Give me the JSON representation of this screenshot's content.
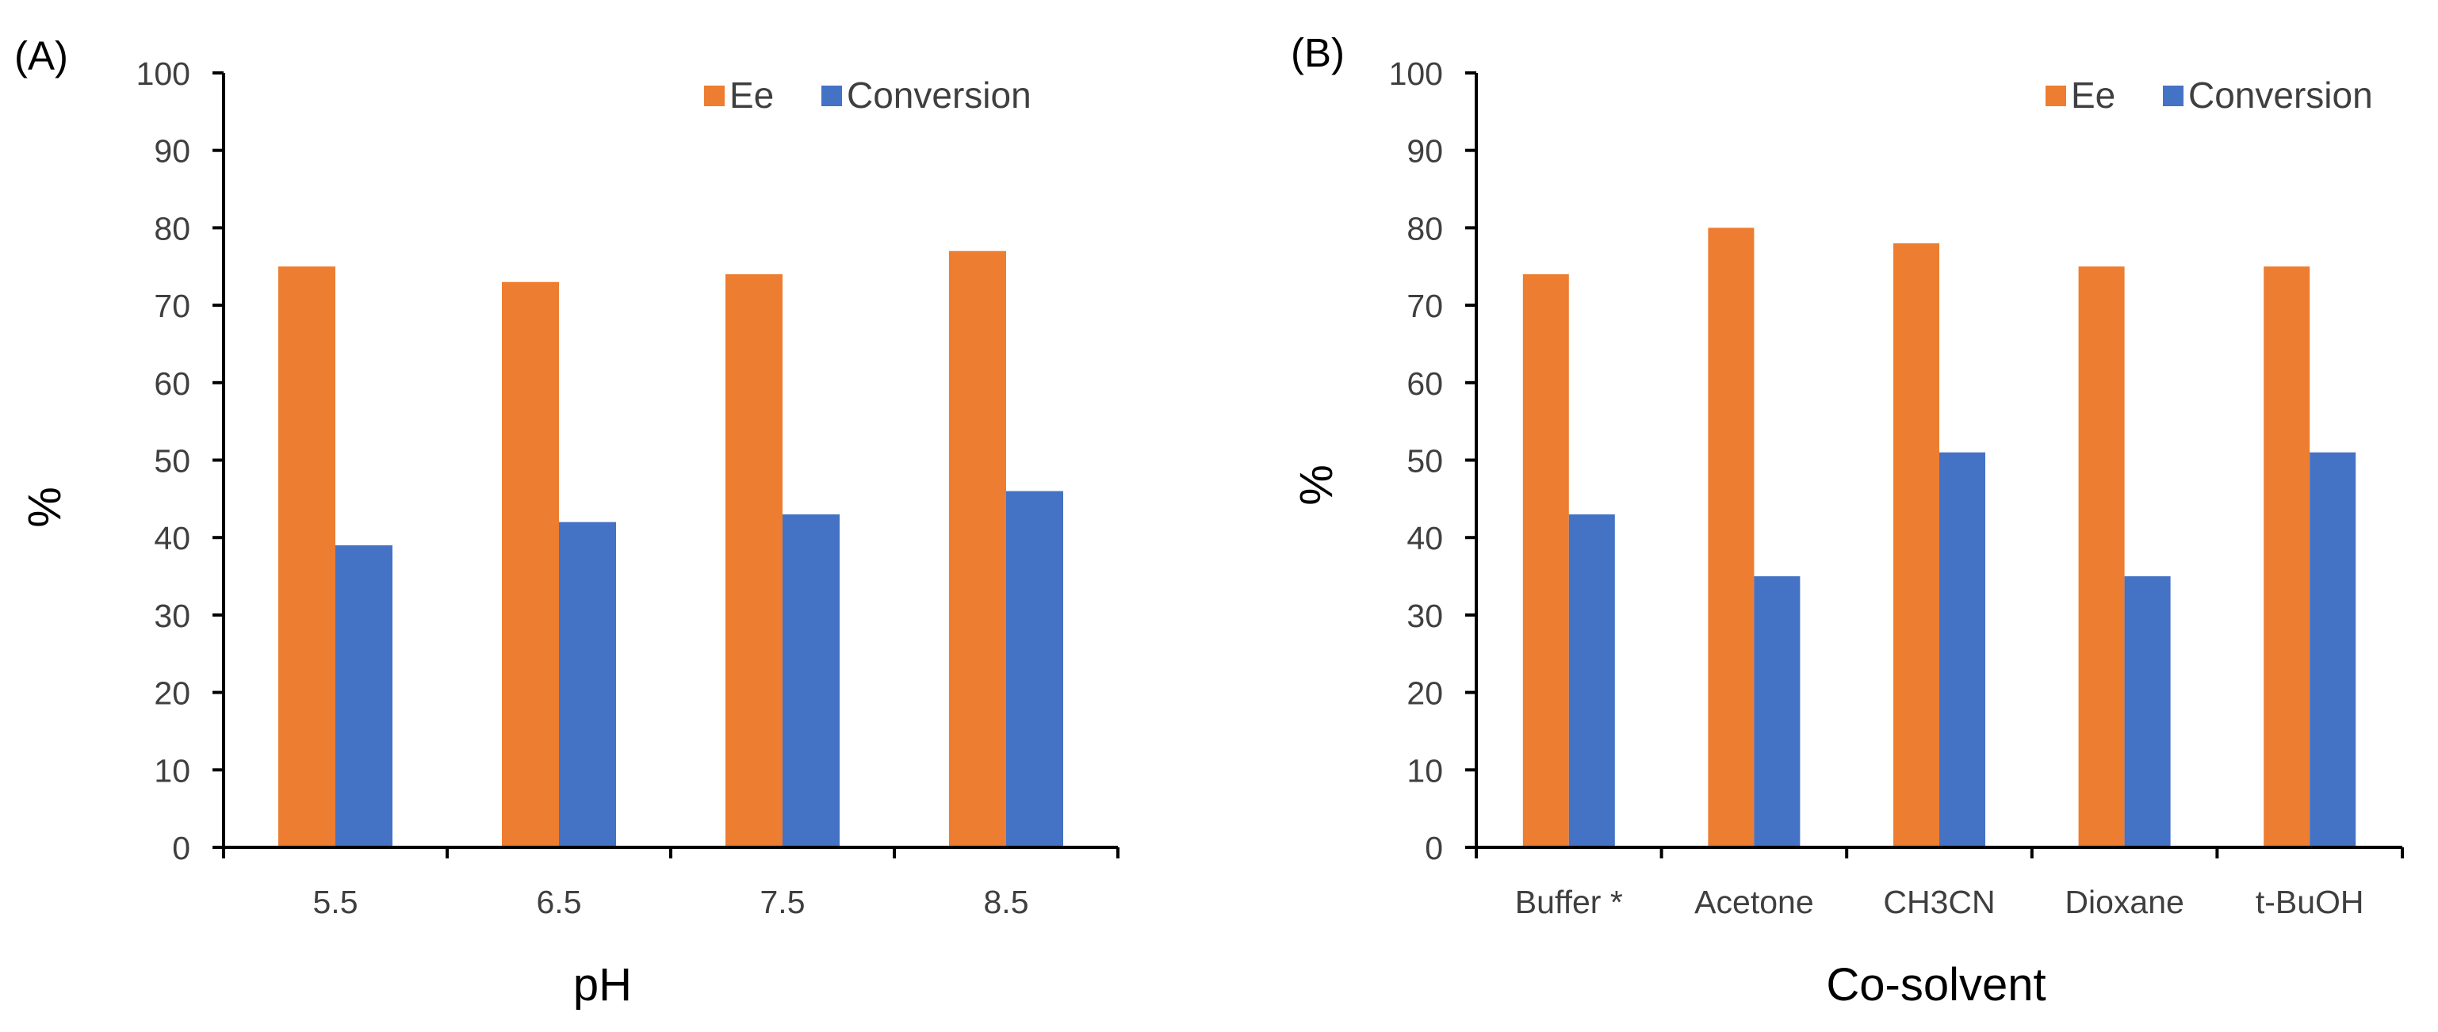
{
  "panels": [
    {
      "panel_label": "(A)",
      "legend": [
        "Ee",
        "Conversion"
      ]
    },
    {
      "panel_label": "(B)",
      "legend": [
        "Ee",
        "Conversion"
      ]
    }
  ],
  "chart_data": [
    {
      "type": "bar",
      "title": "",
      "xlabel": "pH",
      "ylabel": "%",
      "ylim": [
        0,
        100
      ],
      "yticks": [
        "0",
        "10",
        "20",
        "30",
        "40",
        "50",
        "60",
        "70",
        "80",
        "90",
        "100"
      ],
      "categories": [
        "5.5",
        "6.5",
        "7.5",
        "8.5"
      ],
      "series": [
        {
          "name": "Ee",
          "color": "#ED7D31",
          "values": [
            75,
            73,
            74,
            77
          ]
        },
        {
          "name": "Conversion",
          "color": "#4472C4",
          "values": [
            39,
            42,
            43,
            46
          ]
        }
      ],
      "legend_position": "top-right",
      "grid": false
    },
    {
      "type": "bar",
      "title": "",
      "xlabel": "Co-solvent",
      "ylabel": "%",
      "ylim": [
        0,
        100
      ],
      "yticks": [
        "0",
        "10",
        "20",
        "30",
        "40",
        "50",
        "60",
        "70",
        "80",
        "90",
        "100"
      ],
      "categories": [
        "Buffer *",
        "Acetone",
        "CH3CN",
        "Dioxane",
        "t-BuOH"
      ],
      "series": [
        {
          "name": "Ee",
          "color": "#ED7D31",
          "values": [
            74,
            80,
            78,
            75,
            75
          ]
        },
        {
          "name": "Conversion",
          "color": "#4472C4",
          "values": [
            43,
            35,
            51,
            35,
            51
          ]
        }
      ],
      "legend_position": "top-right",
      "grid": false
    }
  ]
}
